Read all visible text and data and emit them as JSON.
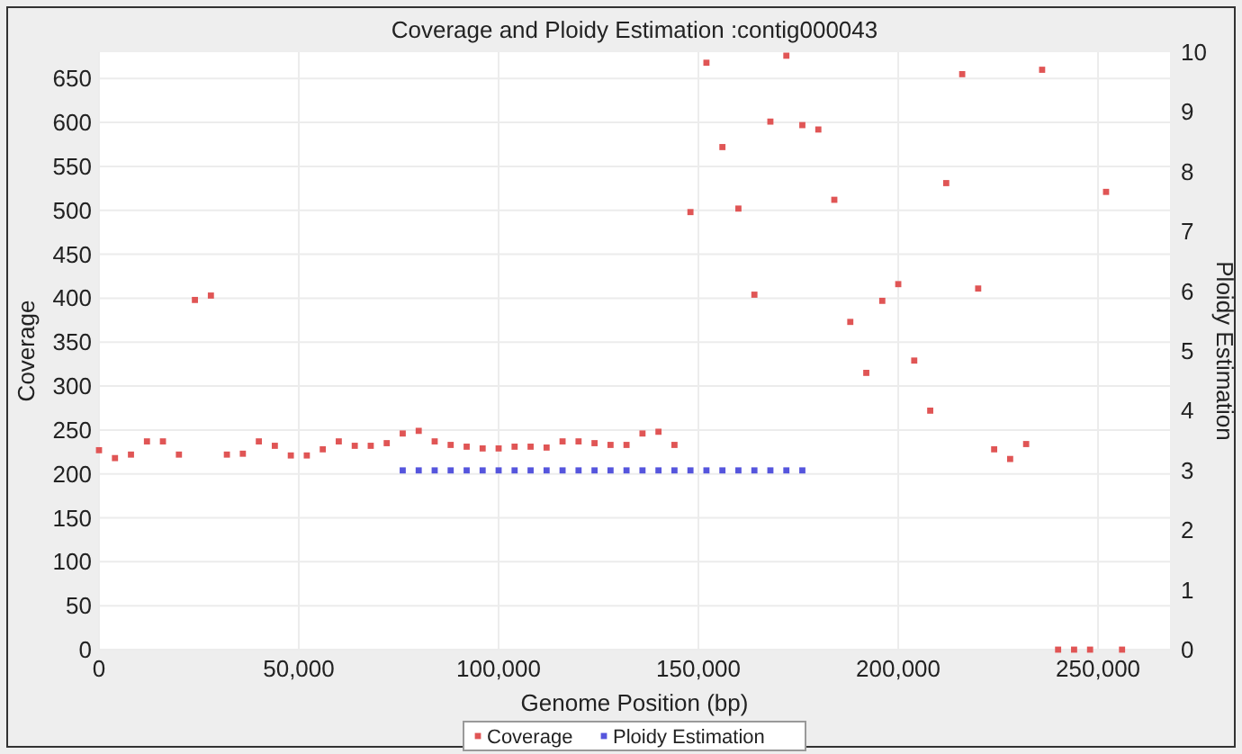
{
  "chart_data": {
    "type": "scatter",
    "title": "Coverage and Ploidy Estimation :contig000043",
    "xlabel": "Genome Position (bp)",
    "ylabel": "Coverage",
    "y2label": "Ploidy Estimation",
    "xlim": [
      0,
      268000
    ],
    "xticks": [
      0,
      {
        "value": 50000,
        "label": "50,000"
      },
      {
        "value": 100000,
        "label": "100,000"
      },
      {
        "value": 150000,
        "label": "150,000"
      },
      {
        "value": 200000,
        "label": "200,000"
      },
      {
        "value": 250000,
        "label": "250,000"
      }
    ],
    "ylim": [
      0,
      680
    ],
    "yticks": [
      0,
      50,
      100,
      150,
      200,
      250,
      300,
      350,
      400,
      450,
      500,
      550,
      600,
      650
    ],
    "y2lim": [
      0,
      10
    ],
    "y2ticks": [
      0,
      1,
      2,
      3,
      4,
      5,
      6,
      7,
      8,
      9,
      10
    ],
    "grid": true,
    "legend": "bottom",
    "marker": "square",
    "series": [
      {
        "name": "Coverage",
        "color": "#e05555",
        "x": [
          0,
          4000,
          8000,
          12000,
          16000,
          20000,
          24000,
          28000,
          32000,
          36000,
          40000,
          44000,
          48000,
          52000,
          56000,
          60000,
          64000,
          68000,
          72000,
          76000,
          80000,
          84000,
          88000,
          92000,
          96000,
          100000,
          104000,
          108000,
          112000,
          116000,
          120000,
          124000,
          128000,
          132000,
          136000,
          140000,
          144000,
          148000,
          152000,
          156000,
          160000,
          164000,
          168000,
          172000,
          176000,
          180000,
          184000,
          188000,
          192000,
          196000,
          200000,
          204000,
          208000,
          212000,
          216000,
          220000,
          224000,
          228000,
          232000,
          236000,
          240000,
          244000,
          248000,
          252000,
          256000
        ],
        "values": [
          227,
          218,
          222,
          237,
          237,
          222,
          398,
          403,
          222,
          223,
          237,
          232,
          221,
          221,
          228,
          237,
          232,
          232,
          235,
          246,
          249,
          237,
          233,
          231,
          229,
          229,
          231,
          231,
          230,
          237,
          237,
          235,
          233,
          233,
          246,
          248,
          233,
          498,
          668,
          572,
          502,
          404,
          601,
          676,
          597,
          592,
          512,
          373,
          315,
          397,
          416,
          329,
          272,
          531,
          655,
          411,
          228,
          217,
          234,
          660,
          0,
          0,
          0,
          521,
          0
        ]
      },
      {
        "name": "Ploidy Estimation",
        "color": "#5555dd",
        "axis": "y2",
        "x": [
          76000,
          80000,
          84000,
          88000,
          92000,
          96000,
          100000,
          104000,
          108000,
          112000,
          116000,
          120000,
          124000,
          128000,
          132000,
          136000,
          140000,
          144000,
          148000,
          152000,
          156000,
          160000,
          164000,
          168000,
          172000,
          176000
        ],
        "values": [
          3,
          3,
          3,
          3,
          3,
          3,
          3,
          3,
          3,
          3,
          3,
          3,
          3,
          3,
          3,
          3,
          3,
          3,
          3,
          3,
          3,
          3,
          3,
          3,
          3,
          3
        ]
      }
    ]
  }
}
